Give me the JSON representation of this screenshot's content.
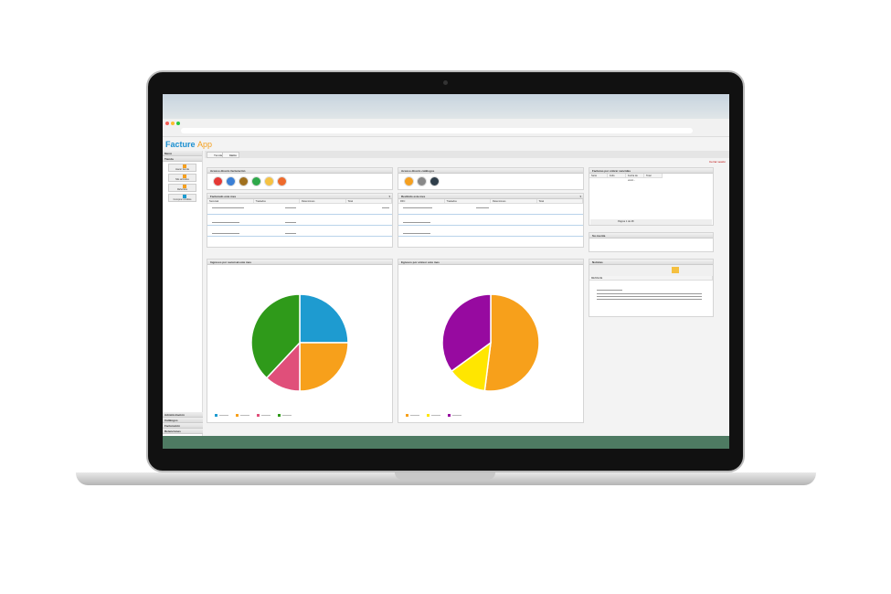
{
  "app": {
    "logo_main": "Facture",
    "logo_accent": "App"
  },
  "sidebar": {
    "menu": "Menú",
    "section": "Tienda",
    "items": [
      {
        "label": "Hacer tienda"
      },
      {
        "label": "Mis artículos"
      },
      {
        "label": "Referidos"
      },
      {
        "label": "Comprar créditos"
      }
    ],
    "footer": [
      {
        "label": "Administración"
      },
      {
        "label": "Catálogos"
      },
      {
        "label": "Facturación"
      },
      {
        "label": "Retenciones"
      }
    ]
  },
  "tabs": [
    {
      "label": "Tienda"
    },
    {
      "label": "Inicio"
    }
  ],
  "toolbar": {
    "logout": "Cerrar sesión"
  },
  "panels": {
    "facturacion": {
      "title": "Acceso directo facturación",
      "icon_colors": [
        "#e53935",
        "#3a7fd5",
        "#a0701e",
        "#2ea84a",
        "#f5c242",
        "#ee6a2b"
      ]
    },
    "catalogos": {
      "title": "Acceso directo catálogos",
      "icon_colors": [
        "#f5a020",
        "#888888",
        "#2f3e4a"
      ]
    },
    "facturado": {
      "title": "Facturado este mes",
      "columns": [
        "Sucursal",
        "Traslados",
        "Retenciones",
        "Total"
      ]
    },
    "recibido": {
      "title": "Recibido este mes",
      "columns": [
        "RFC",
        "Traslados",
        "Retenciones",
        "Total"
      ]
    },
    "por_cobrar": {
      "title": "Facturas por cobrar vencidas",
      "columns": [
        "Serie",
        "Folio",
        "Fecha de venci...",
        "Total"
      ],
      "pager": {
        "label": "Página",
        "page": "1",
        "of": "de 28"
      }
    },
    "cuenta": {
      "title": "Su cuenta"
    },
    "noticias": {
      "title": "Noticias",
      "column": "MENSAJE"
    },
    "ingresos": {
      "title": "Ingresos por sucursal este mes"
    },
    "egresos": {
      "title": "Egresos por emisor este mes"
    }
  },
  "chart_data": [
    {
      "type": "pie",
      "title": "Ingresos por sucursal este mes",
      "values": [
        25,
        25,
        12,
        38
      ],
      "colors": [
        "#1e9bd0",
        "#f7a01b",
        "#e04f7a",
        "#2f9a1a"
      ]
    },
    {
      "type": "pie",
      "title": "Egresos por emisor este mes",
      "values": [
        52,
        13,
        35
      ],
      "colors": [
        "#f7a01b",
        "#ffe600",
        "#970aa0"
      ]
    }
  ]
}
